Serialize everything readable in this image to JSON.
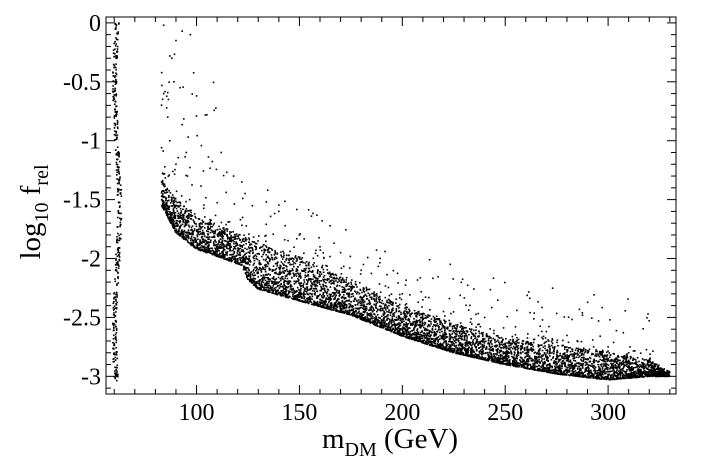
{
  "chart_data": {
    "type": "scatter",
    "title": "",
    "xlabel_base": "m",
    "xlabel_sub": "DM",
    "xlabel_rest": " (GeV)",
    "ylabel_base": "log",
    "ylabel_sub1": "10",
    "ylabel_mid": " f",
    "ylabel_sub2": "rel",
    "xlim": [
      56,
      333
    ],
    "ylim": [
      -3.15,
      0.05
    ],
    "xticks": [
      100,
      150,
      200,
      250,
      300
    ],
    "xtick_labels": [
      "100",
      "150",
      "200",
      "250",
      "300"
    ],
    "yticks": [
      0,
      -0.5,
      -1,
      -1.5,
      -2,
      -2.5,
      -3
    ],
    "ytick_labels": [
      "0",
      "-0.5",
      "-1",
      "-1.5",
      "-2",
      "-2.5",
      "-3"
    ],
    "x_minor_step": 10,
    "y_minor_step": 0.1,
    "grid": false,
    "legend": "none",
    "marker_color": "#000000",
    "series": [
      {
        "values_description_free": true,
        "lower_boundary": [
          [
            83,
            -1.55
          ],
          [
            90,
            -1.78
          ],
          [
            100,
            -1.92
          ],
          [
            110,
            -1.98
          ],
          [
            122,
            -2.06
          ],
          [
            125,
            -2.18
          ],
          [
            130,
            -2.26
          ],
          [
            150,
            -2.36
          ],
          [
            175,
            -2.48
          ],
          [
            200,
            -2.66
          ],
          [
            225,
            -2.8
          ],
          [
            250,
            -2.9
          ],
          [
            275,
            -2.98
          ],
          [
            300,
            -3.03
          ],
          [
            320,
            -3.0
          ]
        ],
        "upper_boundary": [
          [
            83,
            -1.35
          ],
          [
            90,
            -1.5
          ],
          [
            100,
            -1.64
          ],
          [
            110,
            -1.72
          ],
          [
            120,
            -1.8
          ],
          [
            130,
            -1.88
          ],
          [
            150,
            -2.0
          ],
          [
            175,
            -2.2
          ],
          [
            200,
            -2.4
          ],
          [
            225,
            -2.56
          ],
          [
            250,
            -2.68
          ],
          [
            275,
            -2.74
          ],
          [
            300,
            -2.8
          ],
          [
            320,
            -2.86
          ],
          [
            330,
            -2.96
          ]
        ],
        "sparse_points": [
          [
            84,
            -0.02
          ],
          [
            90,
            -0.15
          ],
          [
            93,
            -0.07
          ],
          [
            97,
            -0.1
          ],
          [
            88,
            -0.3
          ],
          [
            89,
            -0.5
          ],
          [
            92,
            -0.55
          ],
          [
            100,
            -0.62
          ],
          [
            105,
            -0.78
          ],
          [
            84,
            -0.6
          ],
          [
            86,
            -0.8
          ],
          [
            87,
            -1.0
          ],
          [
            90,
            -1.2
          ],
          [
            95,
            -1.1
          ],
          [
            112,
            -1.1
          ],
          [
            118,
            -1.3
          ],
          [
            122,
            -1.35
          ],
          [
            140,
            -1.6
          ],
          [
            150,
            -1.8
          ],
          [
            160,
            -1.9
          ],
          [
            170,
            -1.95
          ],
          [
            180,
            -2.1
          ],
          [
            200,
            -2.3
          ],
          [
            210,
            -2.35
          ],
          [
            220,
            -2.45
          ],
          [
            240,
            -2.5
          ],
          [
            255,
            -2.58
          ],
          [
            270,
            -2.62
          ],
          [
            285,
            -2.7
          ],
          [
            300,
            -2.75
          ],
          [
            310,
            -2.8
          ]
        ],
        "narrow_band": {
          "x_min": 60,
          "x_max": 64,
          "y_min": -3.05,
          "y_max": 0.0
        }
      }
    ]
  }
}
